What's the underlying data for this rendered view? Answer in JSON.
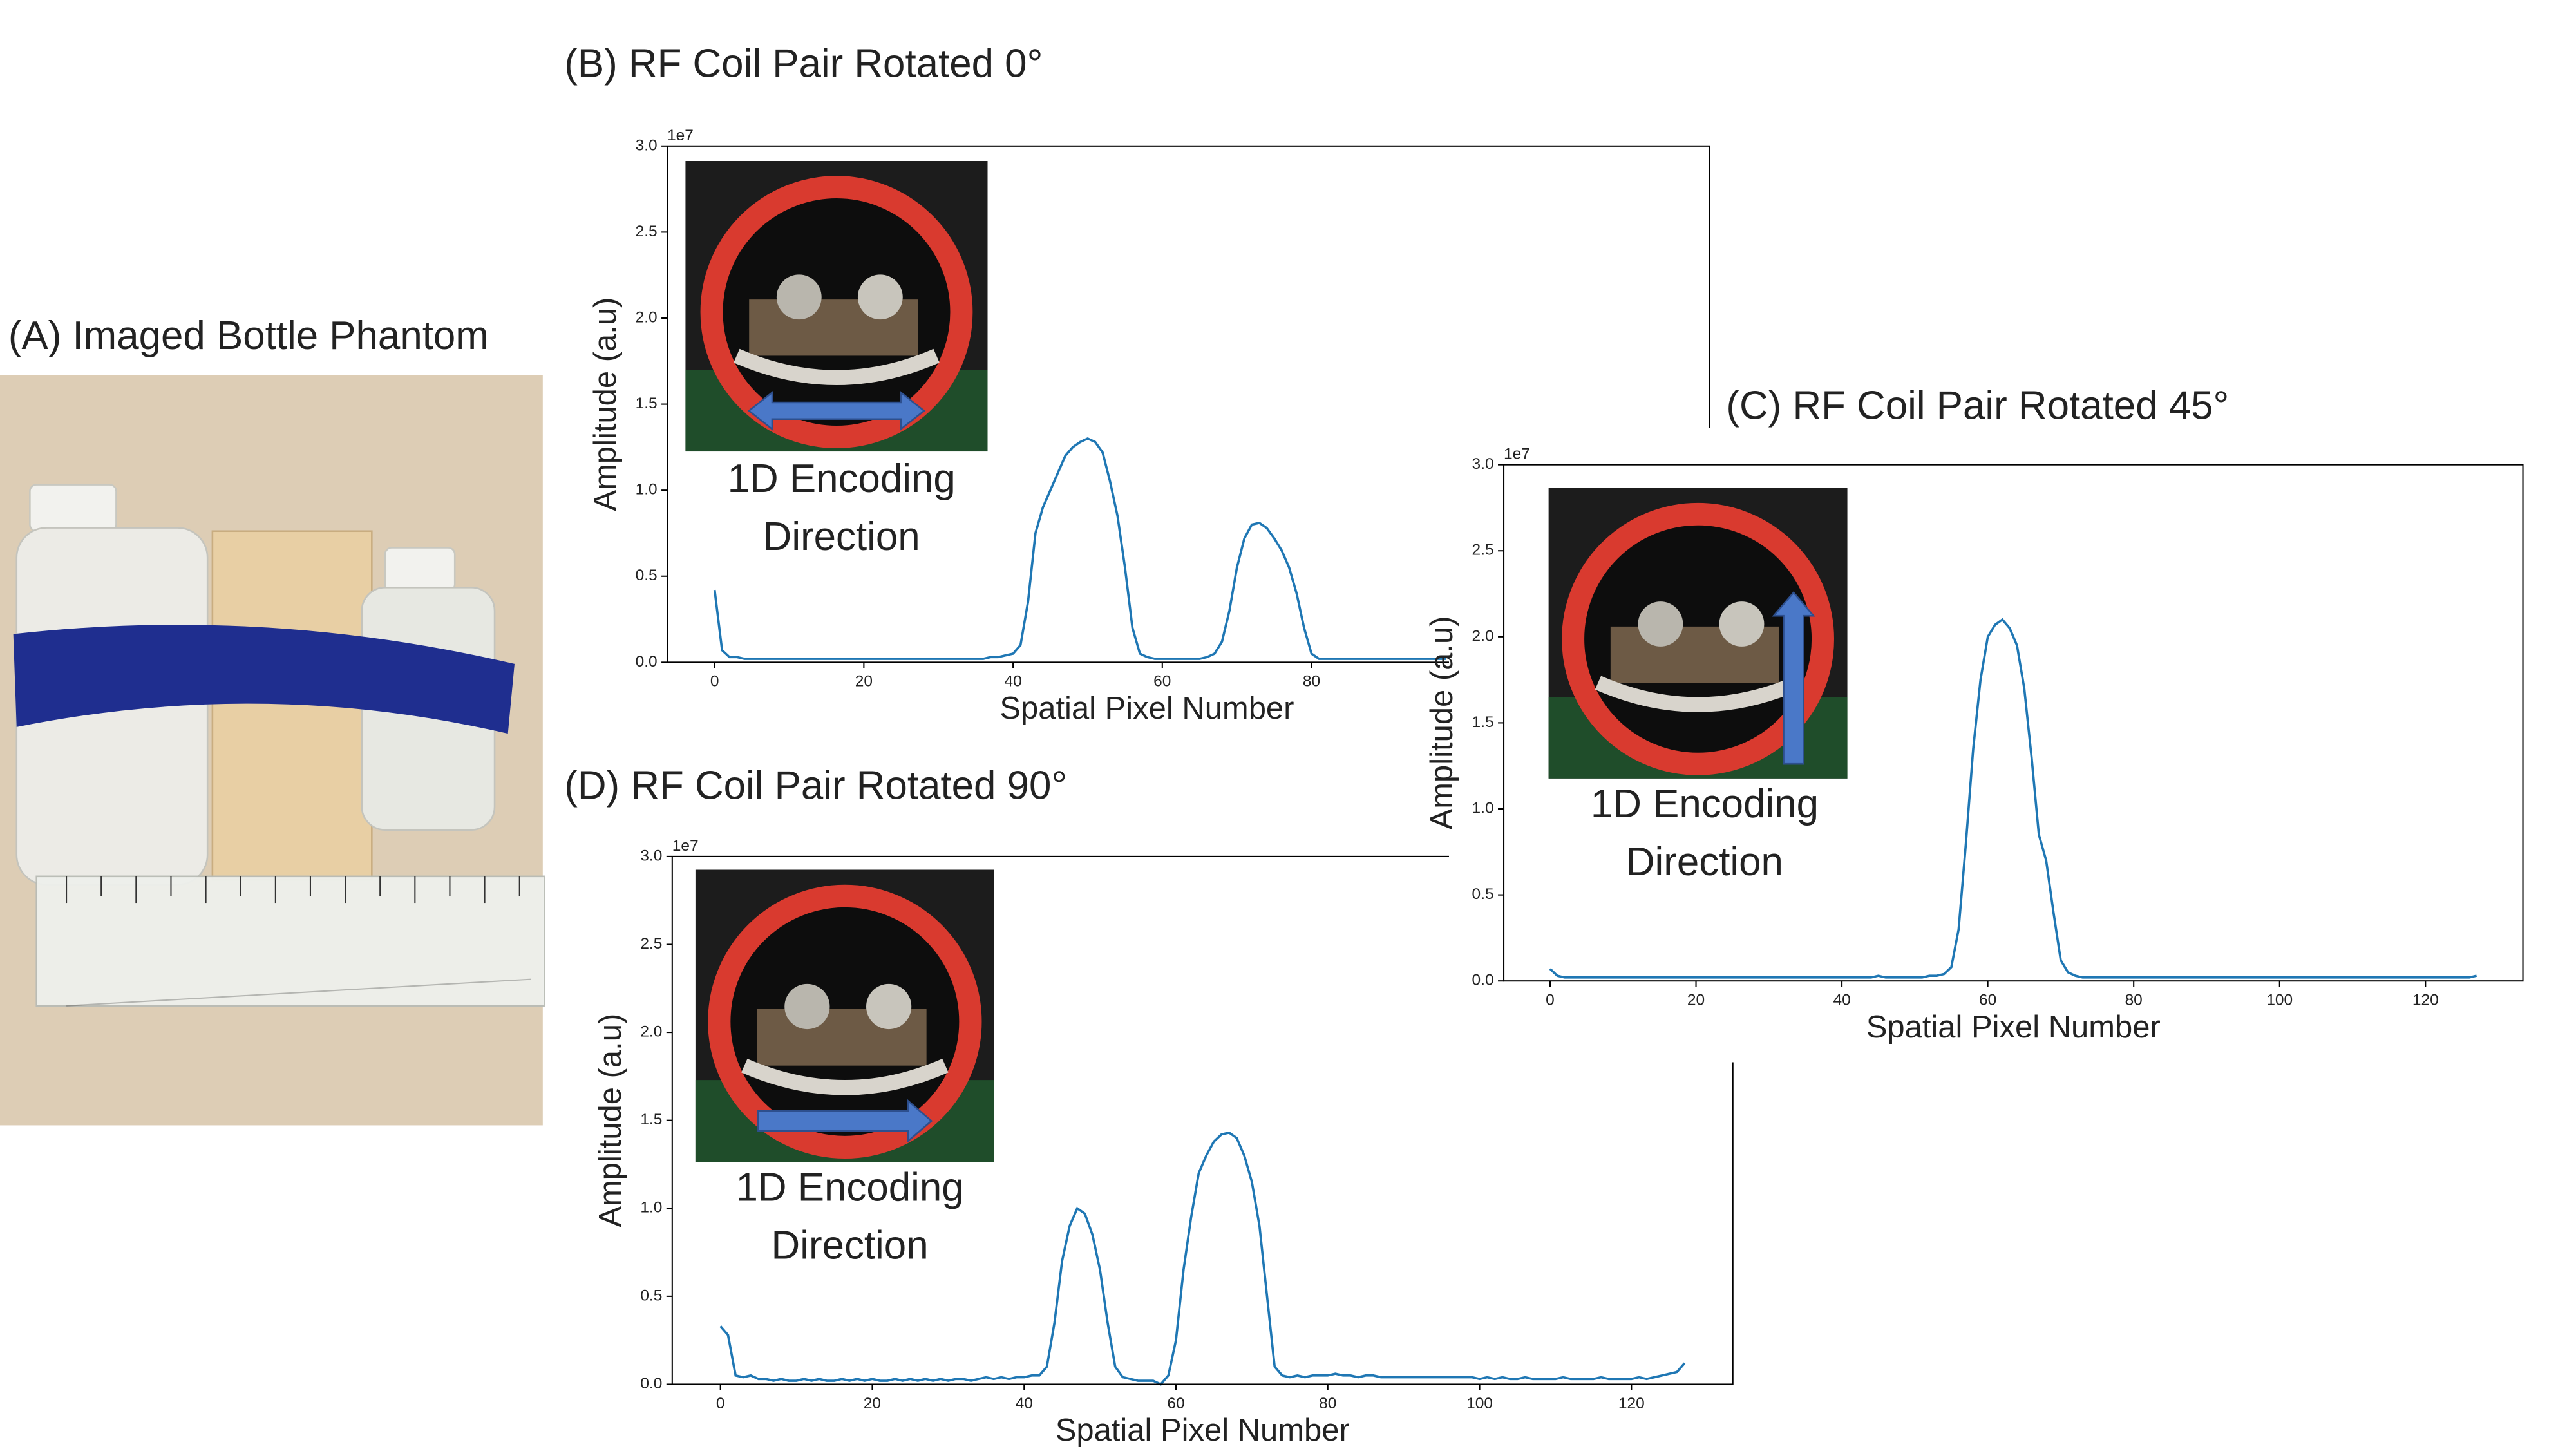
{
  "panel_a": {
    "title": "(A) Imaged Bottle Phantom"
  },
  "chart_data": [
    {
      "type": "line",
      "title": "(B) RF Coil Pair Rotated 0°",
      "x_label": "Spatial Pixel Number",
      "y_label": "Amplitude (a.u)",
      "y_offset_label": "1e7",
      "annotation": [
        "1D Encoding",
        "Direction"
      ],
      "xlim": [
        -6.35,
        133.35
      ],
      "ylim": [
        0,
        3
      ],
      "xticks": [
        0,
        20,
        40,
        60,
        80
      ],
      "yticks": [
        {
          "value": 0,
          "label": "0.0"
        },
        0.5,
        {
          "value": 1,
          "label": "1.0"
        },
        1.5,
        {
          "value": 2,
          "label": "2.0"
        },
        2.5,
        {
          "value": 3,
          "label": "3.0"
        }
      ],
      "series": [
        {
          "color": "#1f77b4",
          "x": [
            0,
            1,
            2,
            3,
            4,
            5,
            6,
            7,
            8,
            9,
            10,
            11,
            12,
            13,
            14,
            15,
            16,
            17,
            18,
            19,
            20,
            21,
            22,
            23,
            24,
            25,
            26,
            27,
            28,
            29,
            30,
            31,
            32,
            33,
            34,
            35,
            36,
            37,
            38,
            39,
            40,
            41,
            42,
            43,
            44,
            45,
            46,
            47,
            48,
            49,
            50,
            51,
            52,
            53,
            54,
            55,
            56,
            57,
            58,
            59,
            60,
            61,
            62,
            63,
            64,
            65,
            66,
            67,
            68,
            69,
            70,
            71,
            72,
            73,
            74,
            75,
            76,
            77,
            78,
            79,
            80,
            81,
            82,
            83,
            84,
            85,
            86,
            87,
            88,
            89,
            90,
            91,
            92,
            93,
            94,
            95,
            96,
            97,
            98
          ],
          "values": [
            0.42,
            0.07,
            0.03,
            0.03,
            0.02,
            0.02,
            0.02,
            0.02,
            0.02,
            0.02,
            0.02,
            0.02,
            0.02,
            0.02,
            0.02,
            0.02,
            0.02,
            0.02,
            0.02,
            0.02,
            0.02,
            0.02,
            0.02,
            0.02,
            0.02,
            0.02,
            0.02,
            0.02,
            0.02,
            0.02,
            0.02,
            0.02,
            0.02,
            0.02,
            0.02,
            0.02,
            0.02,
            0.03,
            0.03,
            0.04,
            0.05,
            0.1,
            0.35,
            0.75,
            0.9,
            1.0,
            1.1,
            1.2,
            1.25,
            1.28,
            1.3,
            1.28,
            1.22,
            1.05,
            0.85,
            0.55,
            0.2,
            0.05,
            0.03,
            0.02,
            0.02,
            0.02,
            0.02,
            0.02,
            0.02,
            0.02,
            0.03,
            0.05,
            0.12,
            0.3,
            0.55,
            0.72,
            0.8,
            0.81,
            0.78,
            0.72,
            0.65,
            0.55,
            0.4,
            0.2,
            0.05,
            0.02,
            0.02,
            0.02,
            0.02,
            0.02,
            0.02,
            0.02,
            0.02,
            0.02,
            0.02,
            0.02,
            0.02,
            0.02,
            0.02,
            0.02,
            0.02,
            0.02,
            0.02
          ]
        }
      ]
    },
    {
      "type": "line",
      "title": "(C) RF Coil Pair Rotated 45°",
      "x_label": "Spatial Pixel Number",
      "y_label": "Amplitude (a.u)",
      "y_offset_label": "1e7",
      "annotation": [
        "1D Encoding",
        "Direction"
      ],
      "xlim": [
        -6.35,
        133.35
      ],
      "ylim": [
        0,
        3
      ],
      "xticks": [
        0,
        20,
        40,
        60,
        80,
        100,
        120
      ],
      "yticks": [
        {
          "value": 0,
          "label": "0.0"
        },
        0.5,
        {
          "value": 1,
          "label": "1.0"
        },
        1.5,
        {
          "value": 2,
          "label": "2.0"
        },
        2.5,
        {
          "value": 3,
          "label": "3.0"
        }
      ],
      "series": [
        {
          "color": "#1f77b4",
          "x": [
            0,
            1,
            2,
            3,
            4,
            5,
            6,
            7,
            8,
            9,
            10,
            11,
            12,
            13,
            14,
            15,
            16,
            17,
            18,
            19,
            20,
            21,
            22,
            23,
            24,
            25,
            26,
            27,
            28,
            29,
            30,
            31,
            32,
            33,
            34,
            35,
            36,
            37,
            38,
            39,
            40,
            41,
            42,
            43,
            44,
            45,
            46,
            47,
            48,
            49,
            50,
            51,
            52,
            53,
            54,
            55,
            56,
            57,
            58,
            59,
            60,
            61,
            62,
            63,
            64,
            65,
            66,
            67,
            68,
            69,
            70,
            71,
            72,
            73,
            74,
            75,
            76,
            77,
            78,
            79,
            80,
            81,
            82,
            83,
            84,
            85,
            86,
            87,
            88,
            89,
            90,
            91,
            92,
            93,
            94,
            95,
            96,
            97,
            98,
            99,
            100,
            101,
            102,
            103,
            104,
            105,
            106,
            107,
            108,
            109,
            110,
            111,
            112,
            113,
            114,
            115,
            116,
            117,
            118,
            119,
            120,
            121,
            122,
            123,
            124,
            125,
            126,
            127
          ],
          "values": [
            0.07,
            0.03,
            0.02,
            0.02,
            0.02,
            0.02,
            0.02,
            0.02,
            0.02,
            0.02,
            0.02,
            0.02,
            0.02,
            0.02,
            0.02,
            0.02,
            0.02,
            0.02,
            0.02,
            0.02,
            0.02,
            0.02,
            0.02,
            0.02,
            0.02,
            0.02,
            0.02,
            0.02,
            0.02,
            0.02,
            0.02,
            0.02,
            0.02,
            0.02,
            0.02,
            0.02,
            0.02,
            0.02,
            0.02,
            0.02,
            0.02,
            0.02,
            0.02,
            0.02,
            0.02,
            0.03,
            0.02,
            0.02,
            0.02,
            0.02,
            0.02,
            0.02,
            0.03,
            0.03,
            0.04,
            0.08,
            0.3,
            0.8,
            1.35,
            1.75,
            2.0,
            2.07,
            2.1,
            2.05,
            1.95,
            1.7,
            1.3,
            0.85,
            0.7,
            0.4,
            0.12,
            0.05,
            0.03,
            0.02,
            0.02,
            0.02,
            0.02,
            0.02,
            0.02,
            0.02,
            0.02,
            0.02,
            0.02,
            0.02,
            0.02,
            0.02,
            0.02,
            0.02,
            0.02,
            0.02,
            0.02,
            0.02,
            0.02,
            0.02,
            0.02,
            0.02,
            0.02,
            0.02,
            0.02,
            0.02,
            0.02,
            0.02,
            0.02,
            0.02,
            0.02,
            0.02,
            0.02,
            0.02,
            0.02,
            0.02,
            0.02,
            0.02,
            0.02,
            0.02,
            0.02,
            0.02,
            0.02,
            0.02,
            0.02,
            0.02,
            0.02,
            0.02,
            0.02,
            0.02,
            0.02,
            0.02,
            0.02,
            0.03
          ]
        }
      ]
    },
    {
      "type": "line",
      "title": "(D) RF Coil Pair Rotated 90°",
      "x_label": "Spatial Pixel Number",
      "y_label": "Amplitude (a.u)",
      "y_offset_label": "1e7",
      "annotation": [
        "1D Encoding",
        "Direction"
      ],
      "xlim": [
        -6.35,
        133.35
      ],
      "ylim": [
        0,
        3
      ],
      "xticks": [
        0,
        20,
        40,
        60,
        80,
        100,
        120
      ],
      "yticks": [
        {
          "value": 0,
          "label": "0.0"
        },
        0.5,
        {
          "value": 1,
          "label": "1.0"
        },
        1.5,
        {
          "value": 2,
          "label": "2.0"
        },
        2.5,
        {
          "value": 3,
          "label": "3.0"
        }
      ],
      "series": [
        {
          "color": "#1f77b4",
          "x": [
            0,
            1,
            2,
            3,
            4,
            5,
            6,
            7,
            8,
            9,
            10,
            11,
            12,
            13,
            14,
            15,
            16,
            17,
            18,
            19,
            20,
            21,
            22,
            23,
            24,
            25,
            26,
            27,
            28,
            29,
            30,
            31,
            32,
            33,
            34,
            35,
            36,
            37,
            38,
            39,
            40,
            41,
            42,
            43,
            44,
            45,
            46,
            47,
            48,
            49,
            50,
            51,
            52,
            53,
            54,
            55,
            56,
            57,
            58,
            59,
            60,
            61,
            62,
            63,
            64,
            65,
            66,
            67,
            68,
            69,
            70,
            71,
            72,
            73,
            74,
            75,
            76,
            77,
            78,
            79,
            80,
            81,
            82,
            83,
            84,
            85,
            86,
            87,
            88,
            89,
            90,
            91,
            92,
            93,
            94,
            95,
            96,
            97,
            98,
            99,
            100,
            101,
            102,
            103,
            104,
            105,
            106,
            107,
            108,
            109,
            110,
            111,
            112,
            113,
            114,
            115,
            116,
            117,
            118,
            119,
            120,
            121,
            122,
            123,
            124,
            125,
            126,
            127
          ],
          "values": [
            0.33,
            0.28,
            0.05,
            0.04,
            0.05,
            0.03,
            0.03,
            0.02,
            0.03,
            0.02,
            0.02,
            0.03,
            0.02,
            0.03,
            0.02,
            0.02,
            0.03,
            0.02,
            0.03,
            0.02,
            0.03,
            0.02,
            0.02,
            0.03,
            0.02,
            0.03,
            0.02,
            0.03,
            0.02,
            0.03,
            0.02,
            0.03,
            0.03,
            0.02,
            0.03,
            0.04,
            0.03,
            0.04,
            0.03,
            0.04,
            0.04,
            0.05,
            0.05,
            0.1,
            0.35,
            0.7,
            0.9,
            1.0,
            0.97,
            0.85,
            0.65,
            0.35,
            0.1,
            0.04,
            0.03,
            0.02,
            0.02,
            0.02,
            0.0,
            0.05,
            0.25,
            0.65,
            0.95,
            1.2,
            1.3,
            1.38,
            1.42,
            1.43,
            1.4,
            1.3,
            1.15,
            0.9,
            0.5,
            0.1,
            0.05,
            0.04,
            0.05,
            0.04,
            0.05,
            0.05,
            0.05,
            0.06,
            0.05,
            0.05,
            0.04,
            0.05,
            0.05,
            0.04,
            0.04,
            0.04,
            0.04,
            0.04,
            0.04,
            0.04,
            0.04,
            0.04,
            0.04,
            0.04,
            0.04,
            0.04,
            0.03,
            0.04,
            0.03,
            0.04,
            0.03,
            0.03,
            0.04,
            0.03,
            0.03,
            0.03,
            0.03,
            0.04,
            0.03,
            0.03,
            0.03,
            0.03,
            0.04,
            0.03,
            0.03,
            0.03,
            0.03,
            0.04,
            0.03,
            0.04,
            0.05,
            0.06,
            0.07,
            0.12
          ]
        }
      ]
    }
  ]
}
